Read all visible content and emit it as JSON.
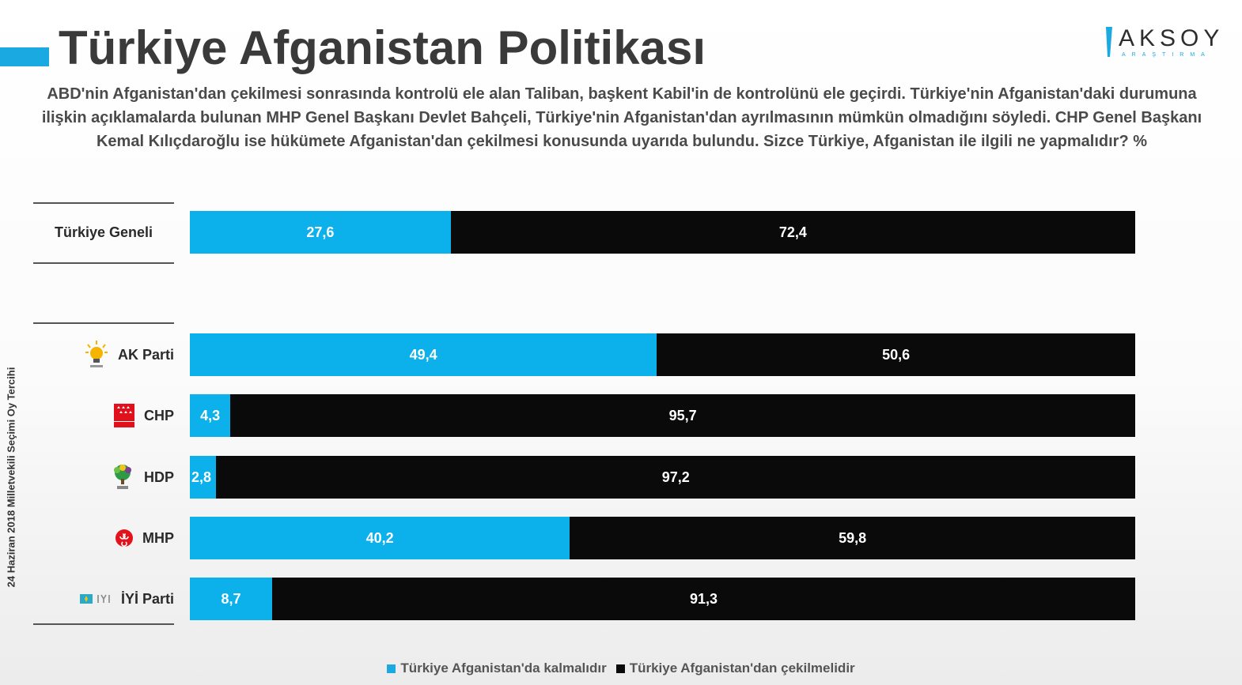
{
  "title": "Türkiye Afganistan Politikası",
  "question": "ABD'nin Afganistan'dan çekilmesi sonrasında kontrolü ele alan Taliban, başkent Kabil'in de kontrolünü ele geçirdi.   Türkiye'nin Afganistan'daki durumuna ilişkin açıklamalarda bulunan MHP Genel Başkanı Devlet Bahçeli, Türkiye'nin Afganistan'dan ayrılmasının mümkün olmadığını söyledi. CHP Genel Başkanı Kemal Kılıçdaroğlu ise hükümete Afganistan'dan çekilmesi konusunda uyarıda bulundu. Sizce Türkiye, Afganistan ile ilgili ne yapmalıdır? %",
  "logo": {
    "word": "AKSOY",
    "sub": "ARAŞTIRMA"
  },
  "side_label": "24 Haziran 2018 Milletvekili Seçimi Oy Tercihi",
  "colors": {
    "stay": "#0cb1ec",
    "leave": "#0a0a0a",
    "accent": "#1aa9e0"
  },
  "chart_data": {
    "type": "bar",
    "orientation": "horizontal",
    "stacked": true,
    "categories": [
      "Türkiye Geneli",
      "AK Parti",
      "CHP",
      "HDP",
      "MHP",
      "İYİ Parti"
    ],
    "category_icons": [
      "",
      "akp-bulb-icon",
      "chp-icon",
      "hdp-tree-icon",
      "mhp-crescents-icon",
      "iyi-parti-icon"
    ],
    "series": [
      {
        "name": "Türkiye Afganistan'da kalmalıdır",
        "color": "#0cb1ec",
        "values": [
          27.6,
          49.4,
          4.3,
          2.8,
          40.2,
          8.7
        ]
      },
      {
        "name": "Türkiye Afganistan'dan çekilmelidir",
        "color": "#0a0a0a",
        "values": [
          72.4,
          50.6,
          95.7,
          97.2,
          59.8,
          91.3
        ]
      }
    ],
    "xlim": [
      0,
      100
    ],
    "legend_position": "bottom",
    "grid": false
  }
}
